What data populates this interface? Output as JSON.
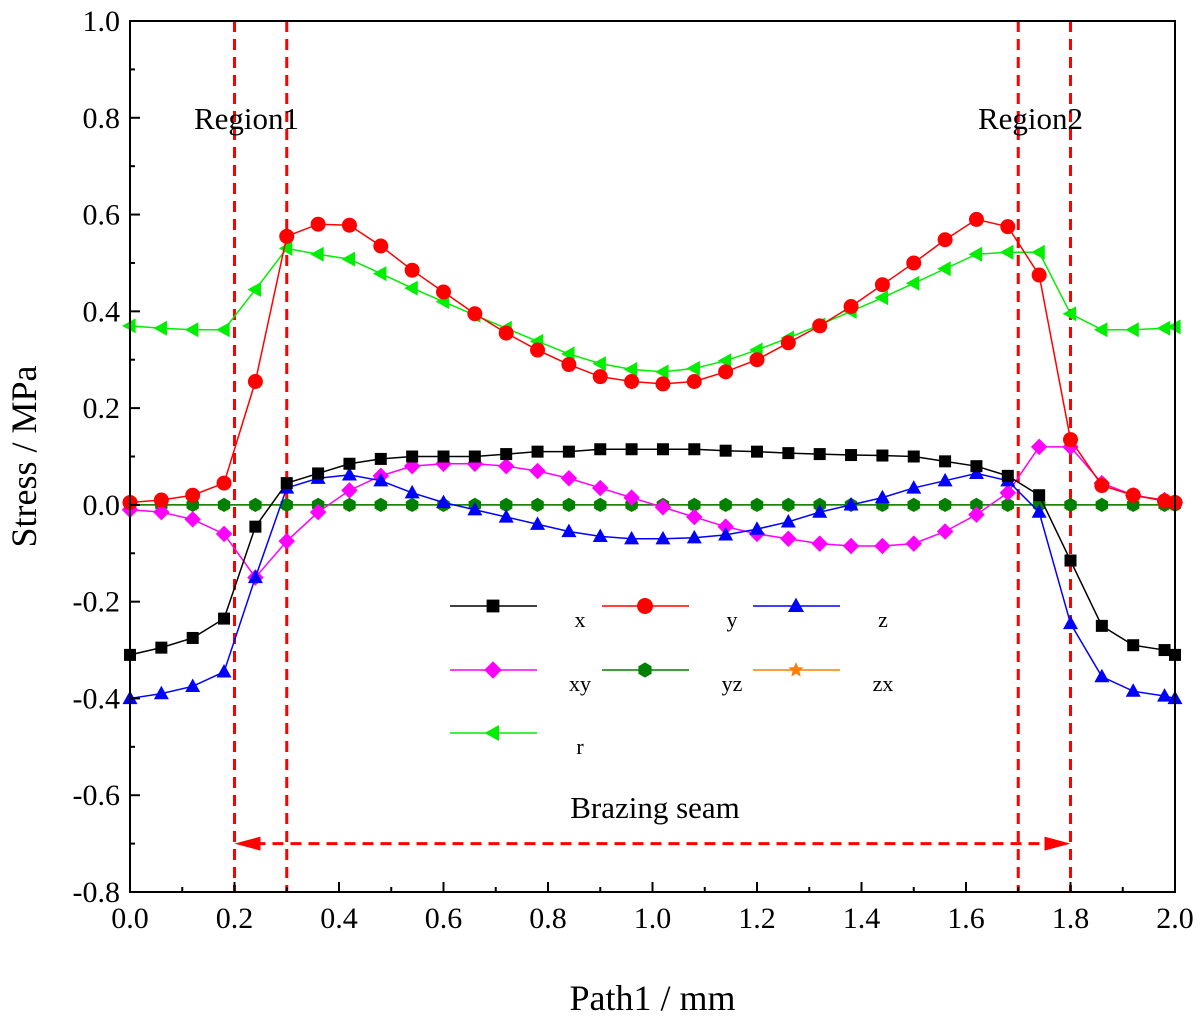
{
  "chart_data": {
    "type": "line",
    "xlabel": "Path1 / mm",
    "ylabel": "Stress / MPa",
    "xlim": [
      0.0,
      2.0
    ],
    "ylim": [
      -0.8,
      1.0
    ],
    "xticks": [
      "0.0",
      "0.2",
      "0.4",
      "0.6",
      "0.8",
      "1.0",
      "1.2",
      "1.4",
      "1.6",
      "1.8",
      "2.0"
    ],
    "yticks": [
      "-0.8",
      "-0.6",
      "-0.4",
      "-0.2",
      "0.0",
      "0.2",
      "0.4",
      "0.6",
      "0.8",
      "1.0"
    ],
    "x": [
      0.0,
      0.06,
      0.12,
      0.18,
      0.24,
      0.3,
      0.36,
      0.42,
      0.48,
      0.54,
      0.6,
      0.66,
      0.72,
      0.78,
      0.84,
      0.9,
      0.96,
      1.02,
      1.08,
      1.14,
      1.2,
      1.26,
      1.32,
      1.38,
      1.44,
      1.5,
      1.56,
      1.62,
      1.68,
      1.74,
      1.8,
      1.86,
      1.92,
      1.98,
      2.0
    ],
    "series": [
      {
        "name": "x",
        "color": "#000000",
        "marker": "square",
        "values": [
          -0.31,
          -0.295,
          -0.275,
          -0.235,
          -0.045,
          0.045,
          0.065,
          0.085,
          0.095,
          0.1,
          0.1,
          0.1,
          0.105,
          0.11,
          0.11,
          0.115,
          0.115,
          0.115,
          0.115,
          0.112,
          0.11,
          0.107,
          0.105,
          0.103,
          0.102,
          0.1,
          0.09,
          0.08,
          0.06,
          0.02,
          -0.115,
          -0.25,
          -0.29,
          -0.3,
          -0.31
        ]
      },
      {
        "name": "y",
        "color": "#ff0000",
        "marker": "circle",
        "values": [
          0.005,
          0.01,
          0.02,
          0.045,
          0.255,
          0.555,
          0.58,
          0.578,
          0.535,
          0.485,
          0.44,
          0.395,
          0.355,
          0.32,
          0.29,
          0.265,
          0.255,
          0.25,
          0.255,
          0.275,
          0.3,
          0.335,
          0.37,
          0.41,
          0.455,
          0.5,
          0.548,
          0.59,
          0.575,
          0.475,
          0.135,
          0.04,
          0.02,
          0.008,
          0.005
        ]
      },
      {
        "name": "z",
        "color": "#0000ff",
        "marker": "triangle-up",
        "values": [
          -0.4,
          -0.39,
          -0.375,
          -0.345,
          -0.15,
          0.035,
          0.055,
          0.062,
          0.05,
          0.025,
          0.005,
          -0.01,
          -0.025,
          -0.04,
          -0.055,
          -0.065,
          -0.07,
          -0.07,
          -0.068,
          -0.062,
          -0.05,
          -0.035,
          -0.015,
          0.0,
          0.015,
          0.035,
          0.05,
          0.065,
          0.05,
          -0.015,
          -0.245,
          -0.355,
          -0.385,
          -0.395,
          -0.4
        ]
      },
      {
        "name": "xy",
        "color": "#ff00ff",
        "marker": "diamond",
        "values": [
          -0.01,
          -0.015,
          -0.03,
          -0.06,
          -0.15,
          -0.075,
          -0.015,
          0.03,
          0.06,
          0.08,
          0.085,
          0.085,
          0.08,
          0.07,
          0.055,
          0.035,
          0.015,
          -0.005,
          -0.025,
          -0.045,
          -0.06,
          -0.07,
          -0.08,
          -0.085,
          -0.085,
          -0.08,
          -0.055,
          -0.02,
          0.025,
          0.12,
          0.12,
          0.045,
          0.02,
          0.01,
          0.005
        ]
      },
      {
        "name": "yz",
        "color": "#008000",
        "marker": "hexagon",
        "values": [
          0,
          0,
          0,
          0,
          0,
          0,
          0,
          0,
          0,
          0,
          0,
          0,
          0,
          0,
          0,
          0,
          0,
          0,
          0,
          0,
          0,
          0,
          0,
          0,
          0,
          0,
          0,
          0,
          0,
          0,
          0,
          0,
          0,
          0,
          0
        ]
      },
      {
        "name": "zx",
        "color": "#ff8000",
        "marker": "star",
        "values": [
          0,
          0,
          0,
          0,
          0,
          0,
          0,
          0,
          0,
          0,
          0,
          0,
          0,
          0,
          0,
          0,
          0,
          0,
          0,
          0,
          0,
          0,
          0,
          0,
          0,
          0,
          0,
          0,
          0,
          0,
          0,
          0,
          0,
          0,
          0
        ]
      },
      {
        "name": "r",
        "color": "#00ee00",
        "marker": "triangle-left",
        "values": [
          0.37,
          0.365,
          0.362,
          0.362,
          0.445,
          0.53,
          0.518,
          0.508,
          0.478,
          0.448,
          0.42,
          0.392,
          0.365,
          0.338,
          0.312,
          0.292,
          0.28,
          0.275,
          0.282,
          0.298,
          0.32,
          0.345,
          0.372,
          0.4,
          0.428,
          0.458,
          0.488,
          0.518,
          0.522,
          0.522,
          0.395,
          0.362,
          0.362,
          0.365,
          0.368
        ]
      }
    ],
    "vlines": [
      0.2,
      0.3,
      1.7,
      1.8
    ],
    "annotations": {
      "region1": "Region1",
      "region2": "Region2",
      "brazing": "Brazing seam"
    },
    "arrow_span": [
      0.2,
      1.8
    ],
    "arrow_y": -0.7,
    "legend_location": "center"
  }
}
